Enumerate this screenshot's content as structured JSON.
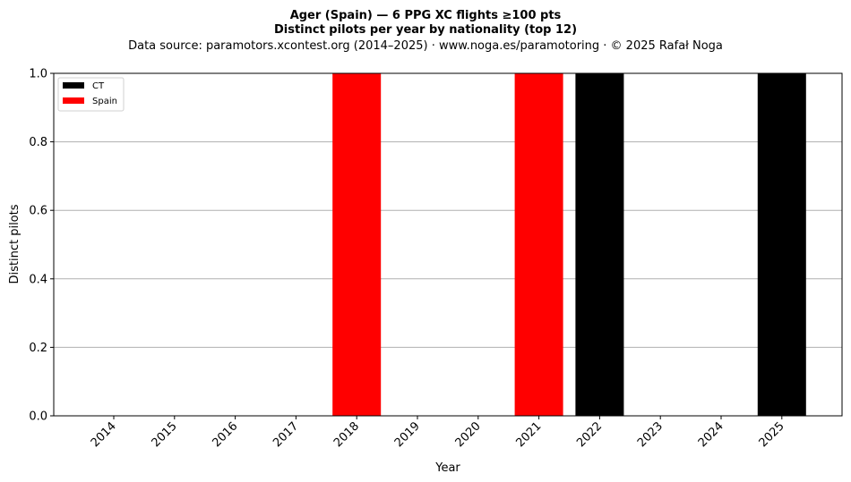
{
  "chart_data": {
    "type": "bar",
    "stacked": true,
    "title": "Ager (Spain)  —  6 PPG XC flights ≥100 pts",
    "subtitle": "Distinct pilots per year by nationality (top 12)",
    "source": "Data source: paramotors.xcontest.org (2014–2025)  ·  www.noga.es/paramotoring  ·  © 2025 Rafał Noga",
    "xlabel": "Year",
    "ylabel": "Distinct pilots",
    "categories": [
      "2014",
      "2015",
      "2016",
      "2017",
      "2018",
      "2019",
      "2020",
      "2021",
      "2022",
      "2023",
      "2024",
      "2025"
    ],
    "ylim": [
      0,
      1.0
    ],
    "yticks": [
      "0.0",
      "0.2",
      "0.4",
      "0.6",
      "0.8",
      "1.0"
    ],
    "grid": "horizontal",
    "legend_position": "top-left",
    "series": [
      {
        "name": "CT",
        "color": "#000000",
        "values": [
          0,
          0,
          0,
          0,
          0,
          0,
          0,
          0,
          1,
          0,
          0,
          1
        ]
      },
      {
        "name": "Spain",
        "color": "#ff0000",
        "values": [
          0,
          0,
          0,
          0,
          1,
          0,
          0,
          1,
          0,
          0,
          0,
          0
        ]
      }
    ]
  }
}
